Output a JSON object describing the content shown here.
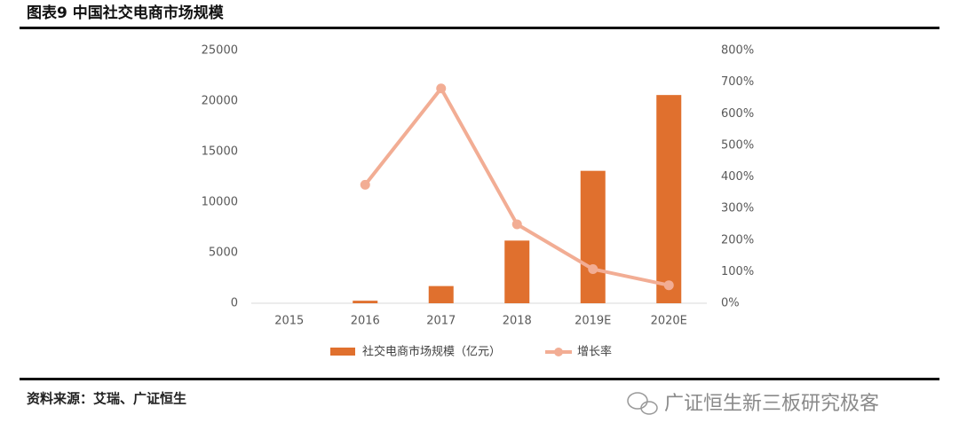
{
  "header": {
    "title": "图表9 中国社交电商市场规模"
  },
  "chart_data": {
    "type": "bar-line",
    "categories": [
      "2015",
      "2016",
      "2017",
      "2018",
      "2019E",
      "2020E"
    ],
    "series": [
      {
        "name": "社交电商市场规模（亿元）",
        "type": "bar",
        "color": "#e0702e",
        "values": [
          0,
          250,
          1700,
          6200,
          13100,
          20600
        ]
      },
      {
        "name": "增长率",
        "type": "line",
        "axis": "y2",
        "color": "#f2ad94",
        "values": [
          null,
          375,
          680,
          250,
          108,
          57
        ]
      }
    ],
    "ylim": [
      0,
      25000
    ],
    "yticks": [
      0,
      5000,
      10000,
      15000,
      20000,
      25000
    ],
    "y2lim": [
      0,
      800
    ],
    "y2ticks": [
      {
        "value": 0,
        "label": "0%"
      },
      {
        "value": 100,
        "label": "100%"
      },
      {
        "value": 200,
        "label": "200%"
      },
      {
        "value": 300,
        "label": "300%"
      },
      {
        "value": 400,
        "label": "400%"
      },
      {
        "value": 500,
        "label": "500%"
      },
      {
        "value": 600,
        "label": "600%"
      },
      {
        "value": 700,
        "label": "700%"
      },
      {
        "value": 800,
        "label": "800%"
      }
    ],
    "grid": false,
    "legend": "bottom"
  },
  "footer": {
    "source": "资料来源：艾瑞、广证恒生",
    "watermark": "广证恒生新三板研究极客"
  }
}
